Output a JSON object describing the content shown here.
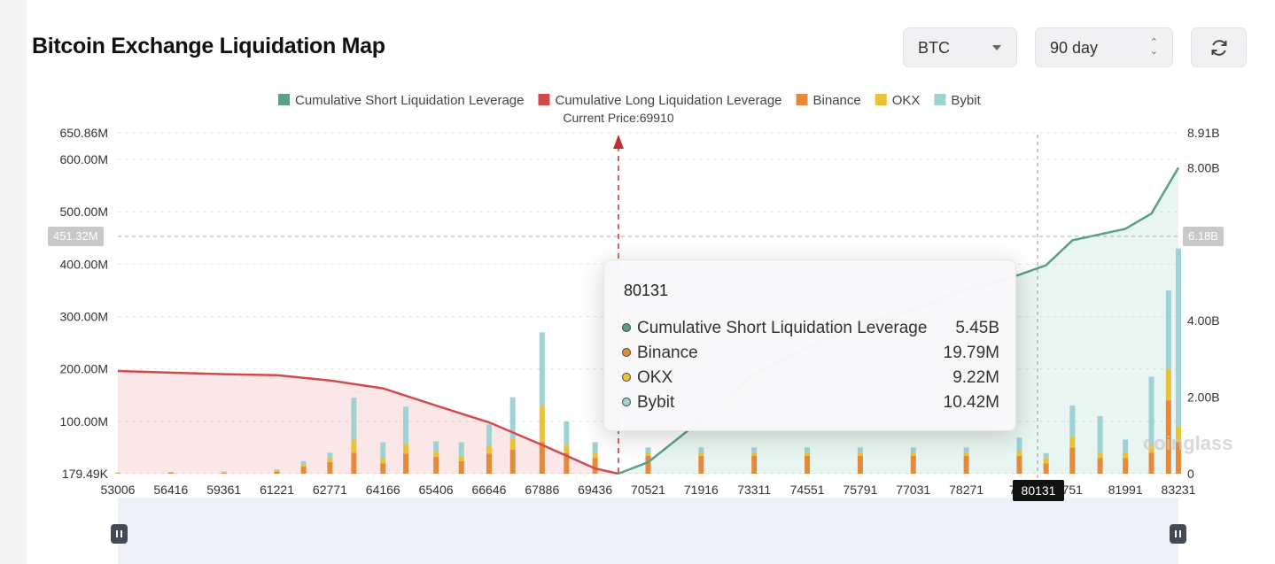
{
  "page": {
    "title": "Bitcoin Exchange Liquidation Map",
    "coin_select": "BTC",
    "range_select": "90 day",
    "refresh_icon": "refresh-icon",
    "watermark": "coinglass"
  },
  "chart_data": {
    "type": "bar",
    "current_price_label": "Current Price:69910",
    "current_price": 69910,
    "legend": [
      {
        "name": "Cumulative Short Liquidation Leverage",
        "color": "#5a9f86"
      },
      {
        "name": "Cumulative Long Liquidation Leverage",
        "color": "#d24b4b"
      },
      {
        "name": "Binance",
        "color": "#e58a3a"
      },
      {
        "name": "OKX",
        "color": "#eac23a"
      },
      {
        "name": "Bybit",
        "color": "#9fd2d2"
      }
    ],
    "left_axis_ticks": [
      "179.49K",
      "100.00M",
      "200.00M",
      "300.00M",
      "400.00M",
      "500.00M",
      "600.00M",
      "650.86M"
    ],
    "right_axis_ticks": [
      "0",
      "2.00B",
      "4.00B",
      "6.00B",
      "8.00B",
      "8.91B"
    ],
    "x_tick_labels": [
      "53006",
      "56416",
      "59361",
      "61221",
      "62771",
      "64166",
      "65406",
      "66646",
      "67886",
      "69436",
      "70521",
      "71916",
      "73311",
      "74551",
      "75791",
      "77031",
      "78271",
      "795",
      "751",
      "81991",
      "83231"
    ],
    "crosshair": {
      "y_left_label": "451.32M",
      "y_right_label": "6.18B",
      "x_label": "80131"
    },
    "left_axis_range": [
      179490,
      650860000
    ],
    "right_axis_range": [
      0,
      8910000000
    ],
    "tooltip": {
      "title": "80131",
      "rows": [
        {
          "name": "Cumulative Short Liquidation Leverage",
          "value": "5.45B",
          "color": "#5a9f86"
        },
        {
          "name": "Binance",
          "value": "19.79M",
          "color": "#e58a3a"
        },
        {
          "name": "OKX",
          "value": "9.22M",
          "color": "#eac23a"
        },
        {
          "name": "Bybit",
          "value": "10.42M",
          "color": "#9fd2d2"
        }
      ]
    },
    "long_curve_millions": [
      [
        53006,
        196
      ],
      [
        56416,
        193
      ],
      [
        59361,
        190
      ],
      [
        61221,
        188
      ],
      [
        62771,
        178
      ],
      [
        64166,
        163
      ],
      [
        65406,
        130
      ],
      [
        66646,
        98
      ],
      [
        67886,
        55
      ],
      [
        69436,
        10
      ],
      [
        69910,
        0
      ]
    ],
    "short_curve_billions": [
      [
        69910,
        0
      ],
      [
        70521,
        0.3
      ],
      [
        71916,
        1.4
      ],
      [
        73311,
        2.6
      ],
      [
        74551,
        3.3
      ],
      [
        75791,
        3.9
      ],
      [
        77031,
        4.3
      ],
      [
        78271,
        4.8
      ],
      [
        79500,
        5.2
      ],
      [
        80131,
        5.45
      ],
      [
        80751,
        6.1
      ],
      [
        81991,
        6.4
      ],
      [
        82600,
        6.8
      ],
      [
        83231,
        8.0
      ]
    ],
    "bars": [
      {
        "x": 53006,
        "binance": 1,
        "okx": 0.5,
        "bybit": 0.5
      },
      {
        "x": 56416,
        "binance": 2,
        "okx": 0.5,
        "bybit": 1
      },
      {
        "x": 59361,
        "binance": 2,
        "okx": 1,
        "bybit": 1
      },
      {
        "x": 61221,
        "binance": 4,
        "okx": 2,
        "bybit": 2
      },
      {
        "x": 62000,
        "binance": 14,
        "okx": 4,
        "bybit": 6
      },
      {
        "x": 62771,
        "binance": 22,
        "okx": 8,
        "bybit": 10
      },
      {
        "x": 63400,
        "binance": 40,
        "okx": 25,
        "bybit": 80
      },
      {
        "x": 64166,
        "binance": 20,
        "okx": 10,
        "bybit": 30
      },
      {
        "x": 64700,
        "binance": 38,
        "okx": 20,
        "bybit": 70
      },
      {
        "x": 65406,
        "binance": 32,
        "okx": 10,
        "bybit": 20
      },
      {
        "x": 66000,
        "binance": 24,
        "okx": 10,
        "bybit": 26
      },
      {
        "x": 66646,
        "binance": 38,
        "okx": 16,
        "bybit": 40
      },
      {
        "x": 67200,
        "binance": 46,
        "okx": 20,
        "bybit": 80
      },
      {
        "x": 67886,
        "binance": 60,
        "okx": 70,
        "bybit": 140
      },
      {
        "x": 68600,
        "binance": 40,
        "okx": 15,
        "bybit": 45
      },
      {
        "x": 69436,
        "binance": 30,
        "okx": 10,
        "bybit": 20
      },
      {
        "x": 70521,
        "binance": 34,
        "okx": 6,
        "bybit": 10
      },
      {
        "x": 71916,
        "binance": 34,
        "okx": 6,
        "bybit": 10
      },
      {
        "x": 73311,
        "binance": 34,
        "okx": 6,
        "bybit": 10
      },
      {
        "x": 74551,
        "binance": 34,
        "okx": 6,
        "bybit": 10
      },
      {
        "x": 75791,
        "binance": 34,
        "okx": 6,
        "bybit": 10
      },
      {
        "x": 77031,
        "binance": 34,
        "okx": 6,
        "bybit": 10
      },
      {
        "x": 78271,
        "binance": 34,
        "okx": 6,
        "bybit": 10
      },
      {
        "x": 79500,
        "binance": 34,
        "okx": 10,
        "bybit": 25
      },
      {
        "x": 80131,
        "binance": 19.79,
        "okx": 9.22,
        "bybit": 10.42
      },
      {
        "x": 80751,
        "binance": 50,
        "okx": 20,
        "bybit": 60
      },
      {
        "x": 81400,
        "binance": 30,
        "okx": 10,
        "bybit": 70
      },
      {
        "x": 81991,
        "binance": 30,
        "okx": 10,
        "bybit": 25
      },
      {
        "x": 82600,
        "binance": 40,
        "okx": 15,
        "bybit": 130
      },
      {
        "x": 83000,
        "binance": 140,
        "okx": 60,
        "bybit": 150
      },
      {
        "x": 83231,
        "binance": 60,
        "okx": 30,
        "bybit": 340
      }
    ]
  }
}
